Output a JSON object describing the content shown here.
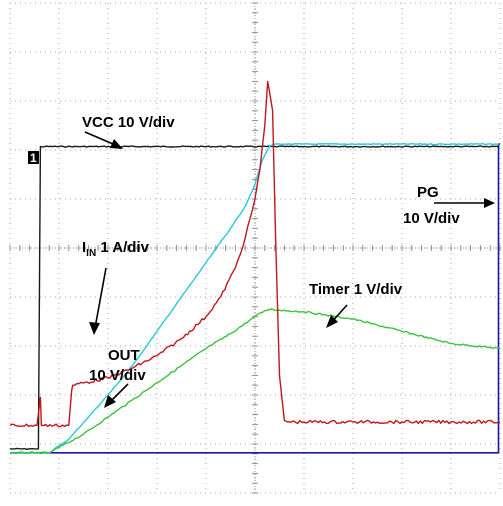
{
  "chart_data": {
    "type": "line",
    "title": "",
    "xlabel": "",
    "ylabel": "",
    "grid": true,
    "grid_divisions": {
      "x": 10,
      "y": 10
    },
    "xlim": [
      0,
      10
    ],
    "ylim": [
      0,
      10
    ],
    "marker_label": "1",
    "colors": {
      "VCC": "#1a1a1a",
      "IIN": "#c0171c",
      "OUT": "#28c8dc",
      "Timer": "#3cc23c",
      "PG": "#1a1a9c",
      "grid": "#a8a8a8"
    },
    "labels": {
      "vcc": "VCC 10 V/div",
      "iin_main": "I",
      "iin_sub": "IN",
      "iin_rest": " 1 A/div",
      "timer": "Timer 1 V/div",
      "out_line1": "OUT",
      "out_line2": "10 V/div",
      "pg_line1": "PG",
      "pg_line2": "10 V/div"
    },
    "series": [
      {
        "name": "VCC",
        "x": [
          0.0,
          0.5,
          0.58,
          0.62,
          9.99
        ],
        "y": [
          0.9,
          0.9,
          0.9,
          7.07,
          7.07
        ]
      },
      {
        "name": "IIN",
        "x": [
          0.0,
          0.55,
          0.62,
          0.64,
          1.2,
          1.26,
          1.28,
          2.0,
          2.5,
          3.0,
          3.5,
          4.0,
          4.3,
          4.6,
          4.8,
          5.0,
          5.1,
          5.2,
          5.26,
          5.3,
          5.36,
          5.42,
          5.5,
          5.6,
          5.7,
          6.0,
          7.0,
          8.0,
          9.0,
          10.0
        ],
        "y": [
          1.38,
          1.38,
          1.95,
          1.38,
          1.38,
          2.1,
          2.2,
          2.35,
          2.55,
          2.8,
          3.15,
          3.6,
          4.0,
          4.6,
          5.2,
          6.0,
          6.6,
          7.5,
          8.4,
          8.17,
          7.8,
          5.2,
          2.4,
          1.48,
          1.45,
          1.45,
          1.45,
          1.45,
          1.45,
          1.45
        ]
      },
      {
        "name": "OUT",
        "x": [
          0.0,
          0.5,
          0.8,
          1.2,
          1.6,
          2.0,
          2.5,
          3.0,
          3.5,
          4.0,
          4.5,
          4.8,
          5.0,
          5.15,
          5.3,
          5.4,
          5.6,
          6.0,
          7.0,
          8.0,
          9.0,
          9.98
        ],
        "y": [
          0.82,
          0.82,
          0.82,
          1.1,
          1.55,
          2.0,
          2.6,
          3.3,
          4.0,
          4.7,
          5.4,
          5.85,
          6.3,
          6.8,
          7.08,
          7.12,
          7.12,
          7.12,
          7.12,
          7.12,
          7.12,
          7.12
        ]
      },
      {
        "name": "Timer",
        "x": [
          0.0,
          0.5,
          0.8,
          1.5,
          2.0,
          2.5,
          3.0,
          3.5,
          4.0,
          4.5,
          5.0,
          5.2,
          5.3,
          5.5,
          6.0,
          7.0,
          8.0,
          9.0,
          10.0
        ],
        "y": [
          0.82,
          0.82,
          0.82,
          1.2,
          1.55,
          1.9,
          2.25,
          2.6,
          2.95,
          3.25,
          3.6,
          3.72,
          3.75,
          3.73,
          3.7,
          3.55,
          3.3,
          3.05,
          2.95
        ]
      },
      {
        "name": "PG",
        "x": [
          0.0,
          9.97,
          9.97,
          10.0
        ],
        "y": [
          0.82,
          0.82,
          7.12,
          7.12
        ]
      }
    ]
  }
}
